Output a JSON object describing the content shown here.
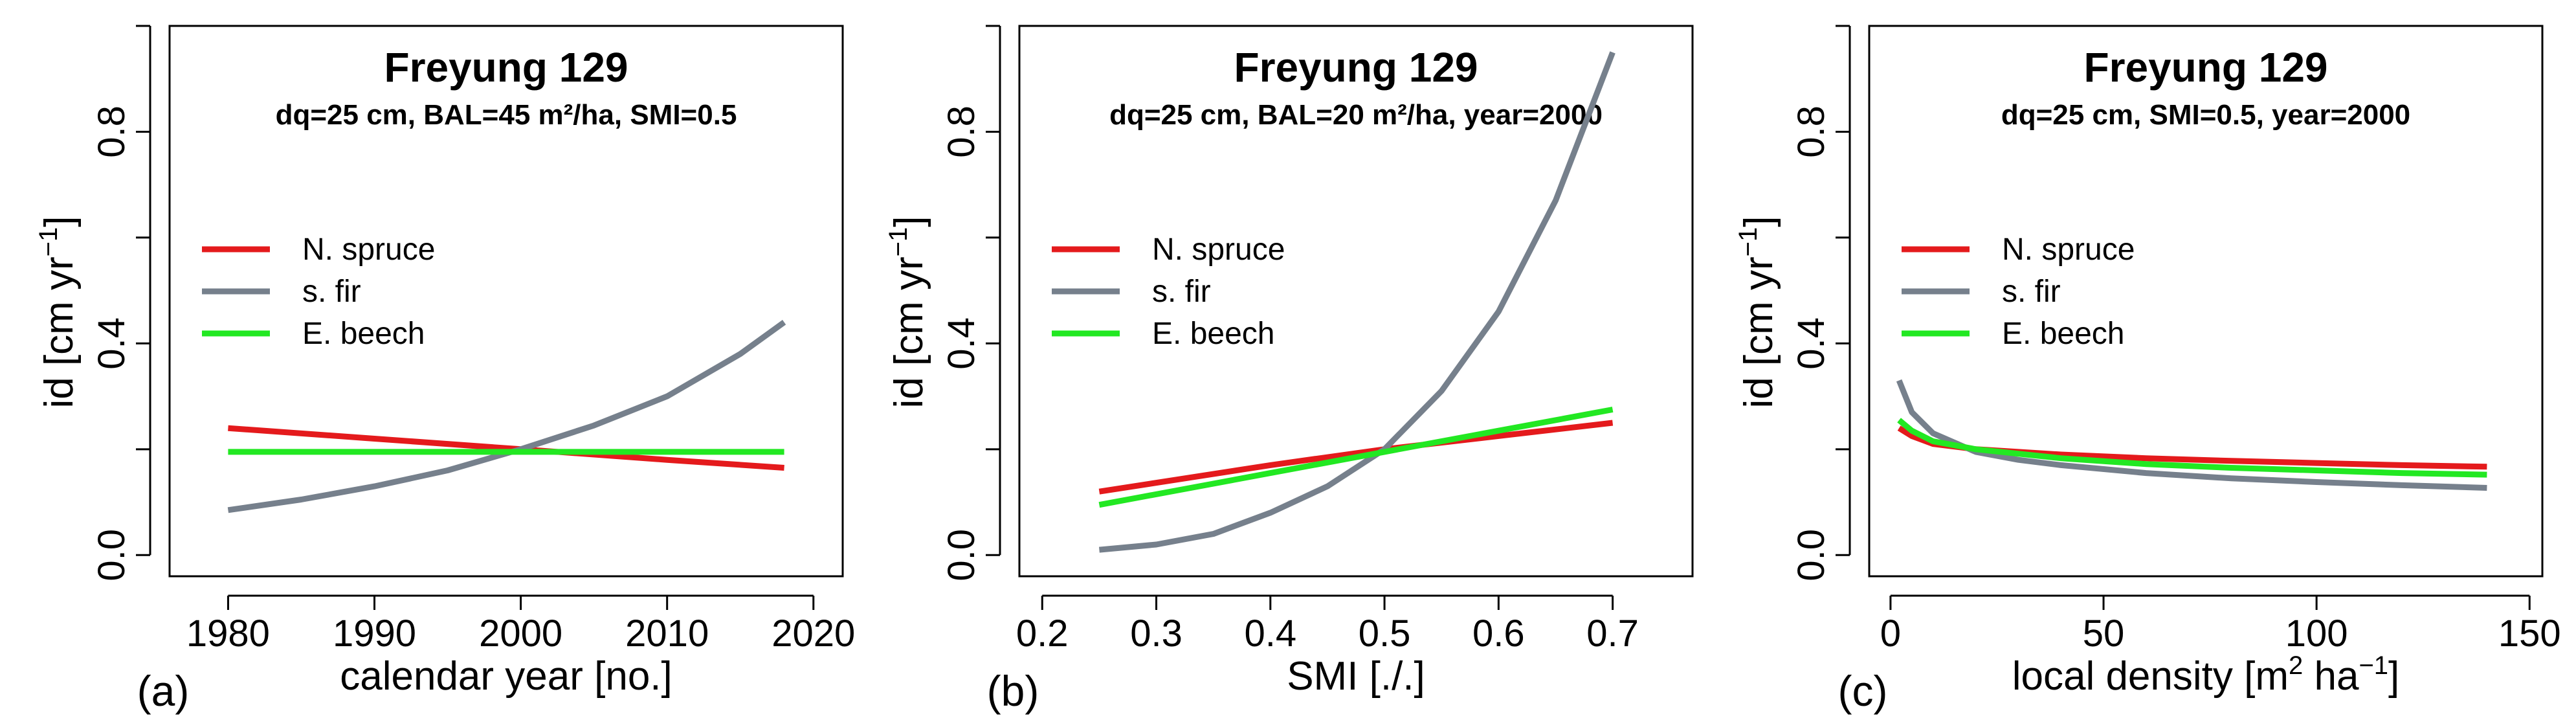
{
  "colors": {
    "spruce": "#e41a1c",
    "fir": "#76808c",
    "beech": "#22e822"
  },
  "chart_data": [
    {
      "type": "line",
      "panel": "(a)",
      "title": "Freyung 129",
      "subtitle": "dq=25 cm, BAL=45 m²/ha, SMI=0.5",
      "xlabel": "calendar year [no.]",
      "ylabel_main": "id [cm yr",
      "ylabel_sup": "−1",
      "ylabel_end": "]",
      "xlim": [
        1976,
        2022
      ],
      "ylim": [
        -0.04,
        1.0
      ],
      "xticks": [
        1980,
        1990,
        2000,
        2010,
        2020
      ],
      "xtick_labels": [
        "1980",
        "1990",
        "2000",
        "2010",
        "2020"
      ],
      "yticks": [
        0.0,
        0.4,
        0.8
      ],
      "ytick_labels": [
        "0.0",
        "0.4",
        "0.8"
      ],
      "legend": [
        "N. spruce",
        "s. fir",
        "E. beech"
      ],
      "series": [
        {
          "name": "N. spruce",
          "color_key": "spruce",
          "x": [
            1980,
            1990,
            2000,
            2010,
            2018
          ],
          "y": [
            0.24,
            0.22,
            0.2,
            0.18,
            0.165
          ]
        },
        {
          "name": "s. fir",
          "color_key": "fir",
          "x": [
            1980,
            1985,
            1990,
            1995,
            2000,
            2005,
            2010,
            2015,
            2018
          ],
          "y": [
            0.085,
            0.105,
            0.13,
            0.16,
            0.2,
            0.245,
            0.3,
            0.38,
            0.44
          ]
        },
        {
          "name": "E. beech",
          "color_key": "beech",
          "x": [
            1980,
            2018
          ],
          "y": [
            0.195,
            0.195
          ]
        }
      ]
    },
    {
      "type": "line",
      "panel": "(b)",
      "title": "Freyung 129",
      "subtitle": "dq=25 cm, BAL=20 m²/ha, year=2000",
      "xlabel": "SMI [./.]",
      "ylabel_main": "id [cm yr",
      "ylabel_sup": "−1",
      "ylabel_end": "]",
      "xlim": [
        0.18,
        0.77
      ],
      "ylim": [
        -0.04,
        1.0
      ],
      "xticks": [
        0.2,
        0.3,
        0.4,
        0.5,
        0.6,
        0.7
      ],
      "xtick_labels": [
        "0.2",
        "0.3",
        "0.4",
        "0.5",
        "0.6",
        "0.7"
      ],
      "yticks": [
        0.0,
        0.4,
        0.8
      ],
      "ytick_labels": [
        "0.0",
        "0.4",
        "0.8"
      ],
      "legend": [
        "N. spruce",
        "s. fir",
        "E. beech"
      ],
      "series": [
        {
          "name": "N. spruce",
          "color_key": "spruce",
          "x": [
            0.25,
            0.4,
            0.5,
            0.6,
            0.7
          ],
          "y": [
            0.12,
            0.17,
            0.2,
            0.225,
            0.25
          ]
        },
        {
          "name": "s. fir",
          "color_key": "fir",
          "x": [
            0.25,
            0.3,
            0.35,
            0.4,
            0.45,
            0.5,
            0.55,
            0.6,
            0.65,
            0.7
          ],
          "y": [
            0.01,
            0.02,
            0.04,
            0.08,
            0.13,
            0.2,
            0.31,
            0.46,
            0.67,
            0.95
          ]
        },
        {
          "name": "E. beech",
          "color_key": "beech",
          "x": [
            0.25,
            0.4,
            0.5,
            0.6,
            0.7
          ],
          "y": [
            0.095,
            0.155,
            0.195,
            0.235,
            0.275
          ]
        }
      ]
    },
    {
      "type": "line",
      "panel": "(c)",
      "title": "Freyung 129",
      "subtitle": "dq=25 cm, SMI=0.5, year=2000",
      "xlabel_main": "local density [m",
      "xlabel_sup1": "2",
      "xlabel_mid": " ha",
      "xlabel_sup2": "−1",
      "xlabel_end": "]",
      "ylabel_main": "id [cm yr",
      "ylabel_sup": "−1",
      "ylabel_end": "]",
      "xlim": [
        -5,
        153
      ],
      "ylim": [
        -0.04,
        1.0
      ],
      "xticks": [
        0,
        50,
        100,
        150
      ],
      "xtick_labels": [
        "0",
        "50",
        "100",
        "150"
      ],
      "yticks": [
        0.0,
        0.4,
        0.8
      ],
      "ytick_labels": [
        "0.0",
        "0.4",
        "0.8"
      ],
      "legend": [
        "N. spruce",
        "s. fir",
        "E. beech"
      ],
      "series": [
        {
          "name": "N. spruce",
          "color_key": "spruce",
          "x": [
            2,
            5,
            10,
            20,
            40,
            60,
            80,
            100,
            120,
            140
          ],
          "y": [
            0.24,
            0.225,
            0.21,
            0.2,
            0.19,
            0.183,
            0.178,
            0.174,
            0.17,
            0.167
          ]
        },
        {
          "name": "s. fir",
          "color_key": "fir",
          "x": [
            2,
            5,
            10,
            20,
            30,
            40,
            60,
            80,
            100,
            120,
            140
          ],
          "y": [
            0.33,
            0.27,
            0.23,
            0.195,
            0.18,
            0.17,
            0.155,
            0.145,
            0.138,
            0.132,
            0.127
          ]
        },
        {
          "name": "E. beech",
          "color_key": "beech",
          "x": [
            2,
            5,
            10,
            20,
            40,
            60,
            80,
            100,
            120,
            140
          ],
          "y": [
            0.255,
            0.235,
            0.215,
            0.2,
            0.183,
            0.172,
            0.165,
            0.16,
            0.155,
            0.152
          ]
        }
      ]
    }
  ]
}
